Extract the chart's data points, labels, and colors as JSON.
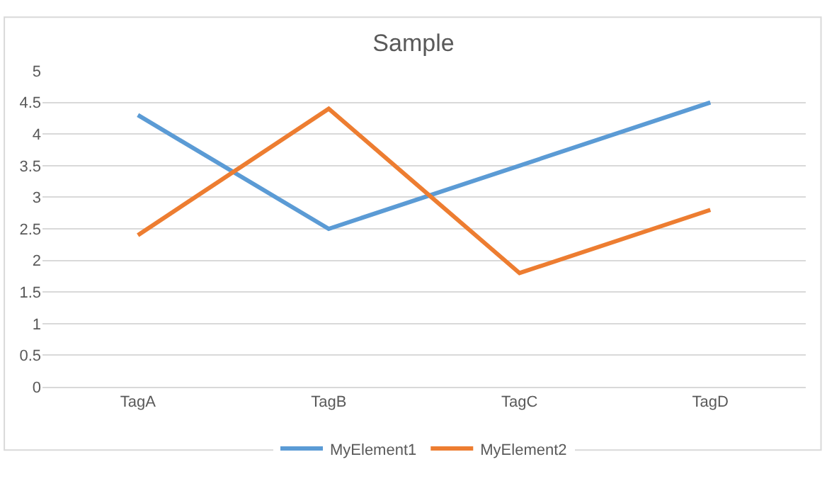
{
  "chart_data": {
    "type": "line",
    "title": "Sample",
    "categories": [
      "TagA",
      "TagB",
      "TagC",
      "TagD"
    ],
    "series": [
      {
        "name": "MyElement1",
        "color": "#5b9bd5",
        "values": [
          4.3,
          2.5,
          3.5,
          4.5
        ]
      },
      {
        "name": "MyElement2",
        "color": "#ed7d31",
        "values": [
          2.4,
          4.4,
          1.8,
          2.8
        ]
      }
    ],
    "ylim": [
      0,
      5
    ],
    "yticks": [
      0,
      0.5,
      1,
      1.5,
      2,
      2.5,
      3,
      3.5,
      4,
      4.5,
      5
    ],
    "grid": "y",
    "legend": "bottom",
    "marker": "none",
    "line_style": "solid"
  }
}
